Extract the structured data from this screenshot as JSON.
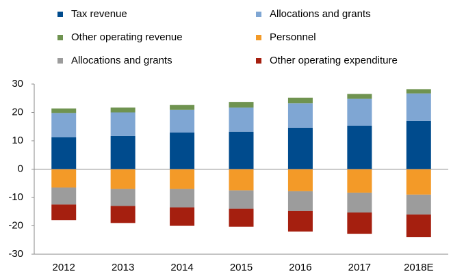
{
  "chart_data": {
    "type": "stacked-bar",
    "categories": [
      "2012",
      "2013",
      "2014",
      "2015",
      "2016",
      "2017",
      "2018E"
    ],
    "series": [
      {
        "name": "Tax revenue",
        "color": "#004b8d",
        "values": [
          11.2,
          11.7,
          12.9,
          13.2,
          14.6,
          15.3,
          17.0
        ]
      },
      {
        "name": "Allocations and grants",
        "color": "#7fa6d3",
        "values": [
          8.6,
          8.3,
          8.0,
          8.5,
          8.6,
          9.5,
          9.7
        ]
      },
      {
        "name": "Other operating revenue",
        "color": "#6f9350",
        "values": [
          1.6,
          1.7,
          1.7,
          2.0,
          2.0,
          1.7,
          1.5
        ]
      },
      {
        "name": "Personnel",
        "color": "#f39a28",
        "values": [
          -6.5,
          -7.0,
          -7.0,
          -7.5,
          -7.8,
          -8.3,
          -9.0
        ]
      },
      {
        "name": "Allocations and grants",
        "color": "#9c9c9c",
        "values": [
          -6.0,
          -6.0,
          -6.5,
          -6.5,
          -7.0,
          -7.0,
          -7.0
        ]
      },
      {
        "name": "Other operating expenditure",
        "color": "#a51f0f",
        "values": [
          -5.5,
          -6.0,
          -6.5,
          -6.3,
          -7.2,
          -7.5,
          -8.0
        ]
      }
    ],
    "ylim": [
      -30,
      30
    ],
    "yticks": [
      -30,
      -20,
      -10,
      0,
      10,
      20,
      30
    ]
  }
}
